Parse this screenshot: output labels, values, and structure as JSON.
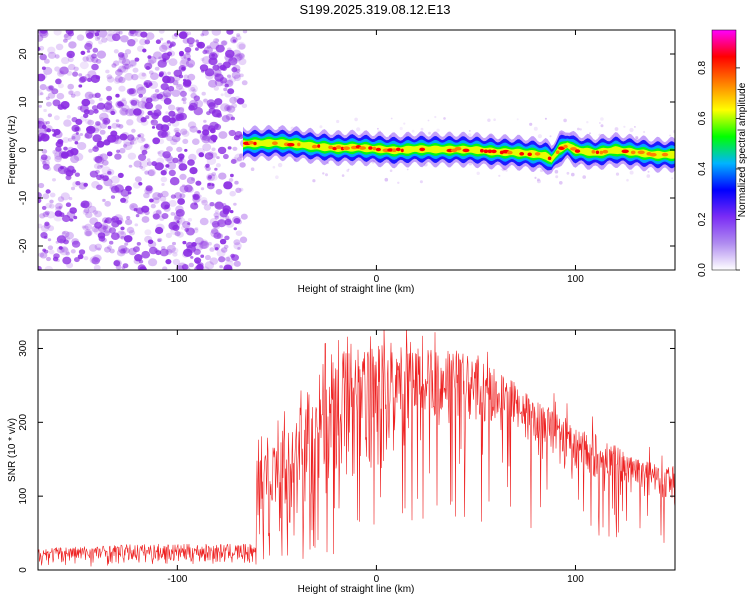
{
  "page_title": "S199.2025.319.08.12.E13",
  "colors": {
    "snr_line": "#ee2222",
    "noise_dot": "#8a2be2",
    "axis": "#000000",
    "colormap": [
      "#ffffff",
      "#b08cf0",
      "#7a2cf5",
      "#0000ff",
      "#00b4ff",
      "#00ff00",
      "#ffff00",
      "#ff8000",
      "#ff0000",
      "#ff00ff"
    ]
  },
  "chart_data": [
    {
      "type": "heatmap",
      "name": "spectrogram",
      "xlabel": "Height of straight line (km)",
      "ylabel": "Frequency (Hz)",
      "xlim": [
        -170,
        150
      ],
      "ylim": [
        -25,
        25
      ],
      "x_ticks": [
        -100,
        0,
        100
      ],
      "x_tick_labels": [
        "-100",
        "0",
        "100"
      ],
      "y_ticks": [
        -20,
        -10,
        0,
        10,
        20
      ],
      "y_tick_labels": [
        "-20",
        "-10",
        "0",
        "10",
        "20"
      ],
      "noise_region_x": [
        -170,
        -66
      ],
      "signal_start_x": -67,
      "ridge_center": {
        "x": [
          -67,
          -50,
          -40,
          -30,
          -20,
          -10,
          0,
          10,
          20,
          30,
          40,
          50,
          60,
          70,
          80,
          85,
          88,
          92,
          96,
          100,
          110,
          120,
          130,
          140,
          150
        ],
        "y": [
          1.3,
          1.5,
          1.2,
          0.7,
          0.4,
          0.5,
          0.2,
          -0.1,
          0.2,
          0.1,
          0.1,
          0.0,
          -0.4,
          -0.5,
          -0.9,
          -1.2,
          -2.0,
          0.2,
          1.0,
          0.0,
          -0.6,
          0.0,
          -0.5,
          -1.0,
          -1.0
        ]
      },
      "colorbar": {
        "label": "Normalized spectral amplitude",
        "range": [
          0,
          0.95
        ],
        "ticks": [
          0.0,
          0.2,
          0.4,
          0.6,
          0.8
        ],
        "tick_labels": [
          "0.0",
          "0.2",
          "0.4",
          "0.6",
          "0.8"
        ]
      }
    },
    {
      "type": "line",
      "name": "snr",
      "xlabel": "Height of straight line (km)",
      "ylabel": "SNR (10 * v/v)",
      "xlim": [
        -170,
        150
      ],
      "ylim": [
        0,
        325
      ],
      "x_ticks": [
        -100,
        0,
        100
      ],
      "x_tick_labels": [
        "-100",
        "0",
        "100"
      ],
      "y_ticks": [
        0,
        100,
        200,
        300
      ],
      "y_tick_labels": [
        "0",
        "100",
        "200",
        "300"
      ],
      "envelope": {
        "x": [
          -170,
          -120,
          -80,
          -61,
          -60,
          -50,
          -40,
          -30,
          -20,
          -10,
          0,
          10,
          20,
          30,
          40,
          50,
          60,
          70,
          80,
          90,
          100,
          110,
          120,
          130,
          140,
          150
        ],
        "upper": [
          30,
          35,
          35,
          35,
          150,
          180,
          215,
          270,
          300,
          290,
          305,
          310,
          300,
          300,
          300,
          285,
          275,
          255,
          230,
          215,
          190,
          185,
          170,
          150,
          145,
          140
        ],
        "lower": [
          5,
          5,
          5,
          5,
          25,
          30,
          40,
          50,
          50,
          80,
          120,
          150,
          170,
          190,
          200,
          190,
          180,
          170,
          150,
          130,
          120,
          110,
          100,
          100,
          95,
          80
        ]
      }
    }
  ]
}
